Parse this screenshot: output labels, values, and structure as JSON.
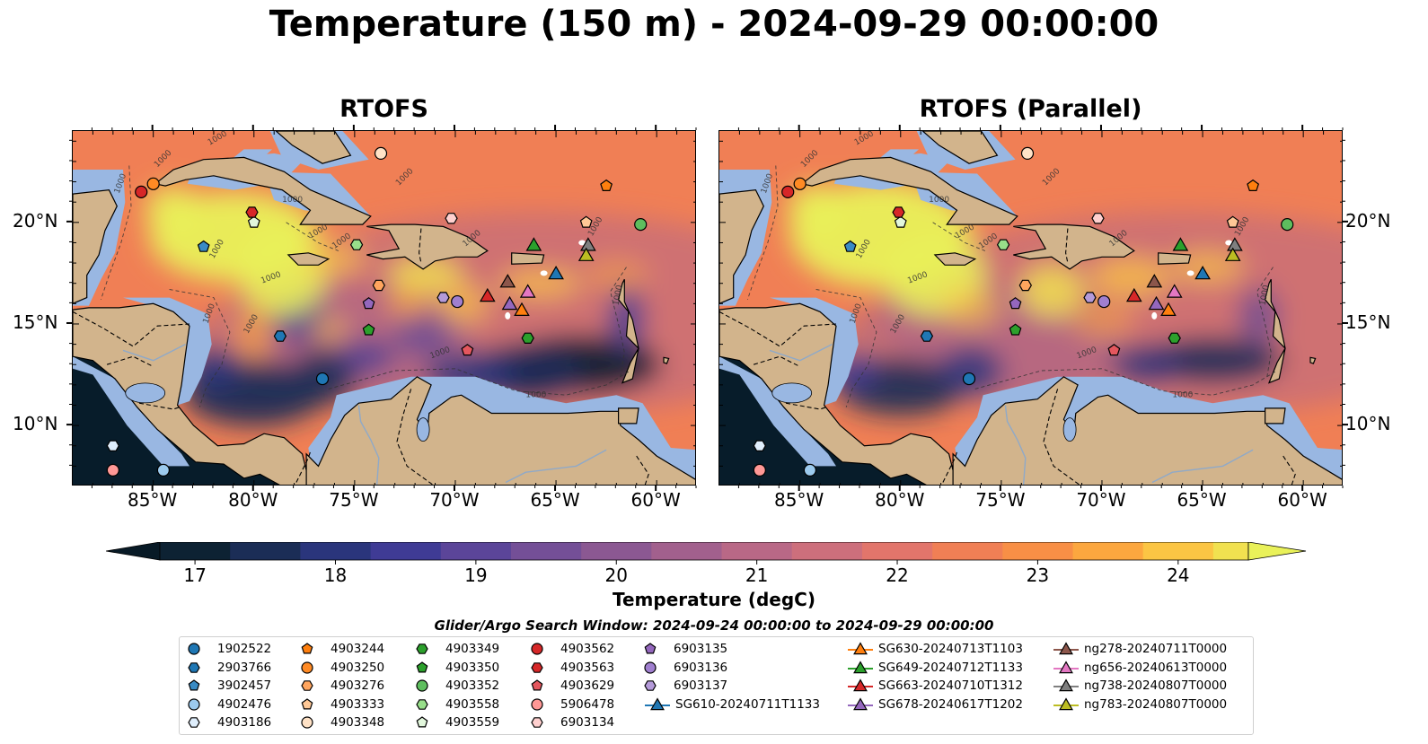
{
  "title": "Temperature (150 m) - 2024-09-29 00:00:00",
  "panels": [
    {
      "title": "RTOFS",
      "variant": "main"
    },
    {
      "title": "RTOFS (Parallel)",
      "variant": "parallel"
    }
  ],
  "map_extent": {
    "lon_min": -89.0,
    "lon_max": -58.0,
    "lat_min": 7.0,
    "lat_max": 24.5
  },
  "lat_ticks": [
    {
      "lat": 20,
      "label": "20°N"
    },
    {
      "lat": 15,
      "label": "15°N"
    },
    {
      "lat": 10,
      "label": "10°N"
    }
  ],
  "lon_ticks": [
    {
      "lon": -85,
      "label": "85°W"
    },
    {
      "lon": -80,
      "label": "80°W"
    },
    {
      "lon": -75,
      "label": "75°W"
    },
    {
      "lon": -70,
      "label": "70°W"
    },
    {
      "lon": -65,
      "label": "65°W"
    },
    {
      "lon": -60,
      "label": "60°W"
    }
  ],
  "contour_label": "1000",
  "colorbar": {
    "label": "Temperature (degC)",
    "min": 16.75,
    "max": 24.5,
    "step": 0.5,
    "ticks": [
      "17",
      "18",
      "19",
      "20",
      "21",
      "22",
      "23",
      "24"
    ],
    "tick_values": [
      17,
      18,
      19,
      20,
      21,
      22,
      23,
      24
    ],
    "colors": [
      "#0d2233",
      "#1b2d56",
      "#2a357c",
      "#3f3b95",
      "#5b4599",
      "#744f97",
      "#8b5892",
      "#a2608d",
      "#b96886",
      "#cd6f7c",
      "#e2756b",
      "#f07f55",
      "#f88f46",
      "#fca73f",
      "#fbc544",
      "#f1e150",
      "#e9f159"
    ],
    "extend_low": "#081a26",
    "extend_high": "#e9f159"
  },
  "colors": {
    "land": "#d2b48c",
    "shelf": "#99b7e2",
    "river": "#8fa9c8"
  },
  "search_window": "Glider/Argo Search Window: 2024-09-24 00:00:00 to 2024-09-29 00:00:00",
  "legend_columns": [
    [
      {
        "label": "1902522",
        "marker": "circle",
        "color": "#1f77b4"
      },
      {
        "label": "2903766",
        "marker": "hexagon",
        "color": "#1f77b4"
      },
      {
        "label": "3902457",
        "marker": "pentagon",
        "color": "#3a8bc4"
      },
      {
        "label": "4902476",
        "marker": "circle",
        "color": "#9ccaee"
      },
      {
        "label": "4903186",
        "marker": "hexagon",
        "color": "#dfeefc"
      }
    ],
    [
      {
        "label": "4903244",
        "marker": "pentagon",
        "color": "#ff7f0e"
      },
      {
        "label": "4903250",
        "marker": "circle",
        "color": "#ff8a24"
      },
      {
        "label": "4903276",
        "marker": "hexagon",
        "color": "#ffa55e"
      },
      {
        "label": "4903333",
        "marker": "pentagon",
        "color": "#ffc896"
      },
      {
        "label": "4903348",
        "marker": "circle",
        "color": "#ffe2c6"
      }
    ],
    [
      {
        "label": "4903349",
        "marker": "hexagon",
        "color": "#2ca02c"
      },
      {
        "label": "4903350",
        "marker": "pentagon",
        "color": "#2ca02c"
      },
      {
        "label": "4903352",
        "marker": "circle",
        "color": "#5ebe5e"
      },
      {
        "label": "4903558",
        "marker": "hexagon",
        "color": "#98df8a"
      },
      {
        "label": "4903559",
        "marker": "pentagon",
        "color": "#e2f7dc"
      }
    ],
    [
      {
        "label": "4903562",
        "marker": "circle",
        "color": "#d62728"
      },
      {
        "label": "4903563",
        "marker": "hexagon",
        "color": "#d62728"
      },
      {
        "label": "4903629",
        "marker": "pentagon",
        "color": "#e4575e"
      },
      {
        "label": "5906478",
        "marker": "circle",
        "color": "#ff9896"
      },
      {
        "label": "6903134",
        "marker": "hexagon",
        "color": "#ffd0cf"
      }
    ],
    [
      {
        "label": "6903135",
        "marker": "pentagon",
        "color": "#9467bd"
      },
      {
        "label": "6903136",
        "marker": "circle",
        "color": "#a07fcf"
      },
      {
        "label": "6903137",
        "marker": "hexagon",
        "color": "#b49ad9"
      },
      {
        "label": "SG610-20240711T1133",
        "marker": "triangle",
        "color": "#1f77b4"
      }
    ],
    [
      {
        "label": "SG630-20240713T1103",
        "marker": "triangle",
        "color": "#ff7f0e"
      },
      {
        "label": "SG649-20240712T1133",
        "marker": "triangle",
        "color": "#2ca02c"
      },
      {
        "label": "SG663-20240710T1312",
        "marker": "triangle",
        "color": "#d62728"
      },
      {
        "label": "SG678-20240617T1202",
        "marker": "triangle",
        "color": "#9467bd"
      }
    ],
    [
      {
        "label": "ng278-20240711T0000",
        "marker": "triangle",
        "color": "#8c564b"
      },
      {
        "label": "ng656-20240613T0000",
        "marker": "triangle",
        "color": "#e377c2"
      },
      {
        "label": "ng738-20240807T0000",
        "marker": "triangle",
        "color": "#7f7f7f"
      },
      {
        "label": "ng783-20240807T0000",
        "marker": "triangle",
        "color": "#bcbd22"
      }
    ]
  ],
  "platforms": [
    {
      "id": "1902522",
      "lon": -76.6,
      "lat": 12.3
    },
    {
      "id": "2903766",
      "lon": -78.7,
      "lat": 14.4
    },
    {
      "id": "3902457",
      "lon": -82.5,
      "lat": 18.8
    },
    {
      "id": "4902476",
      "lon": -84.5,
      "lat": 7.8
    },
    {
      "id": "4903186",
      "lon": -87.0,
      "lat": 9.0
    },
    {
      "id": "4903244",
      "lon": -62.5,
      "lat": 21.8
    },
    {
      "id": "4903250",
      "lon": -85.0,
      "lat": 21.9
    },
    {
      "id": "4903276",
      "lon": -73.8,
      "lat": 16.9
    },
    {
      "id": "4903333",
      "lon": -63.5,
      "lat": 20.0
    },
    {
      "id": "4903348",
      "lon": -73.7,
      "lat": 23.4
    },
    {
      "id": "4903349",
      "lon": -66.4,
      "lat": 14.3
    },
    {
      "id": "4903350",
      "lon": -74.3,
      "lat": 14.7
    },
    {
      "id": "4903352",
      "lon": -60.8,
      "lat": 19.9
    },
    {
      "id": "4903558",
      "lon": -74.9,
      "lat": 18.9
    },
    {
      "id": "4903559",
      "lon": -80.0,
      "lat": 20.0
    },
    {
      "id": "4903562",
      "lon": -85.6,
      "lat": 21.5
    },
    {
      "id": "4903563",
      "lon": -80.1,
      "lat": 20.5
    },
    {
      "id": "4903629",
      "lon": -69.4,
      "lat": 13.7
    },
    {
      "id": "5906478",
      "lon": -87.0,
      "lat": 7.8
    },
    {
      "id": "6903134",
      "lon": -70.2,
      "lat": 20.2
    },
    {
      "id": "6903135",
      "lon": -74.3,
      "lat": 16.0
    },
    {
      "id": "6903136",
      "lon": -69.9,
      "lat": 16.1
    },
    {
      "id": "6903137",
      "lon": -70.6,
      "lat": 16.3
    },
    {
      "id": "SG610-20240711T1133",
      "lon": -65.0,
      "lat": 17.5
    },
    {
      "id": "SG630-20240713T1103",
      "lon": -66.7,
      "lat": 15.7
    },
    {
      "id": "SG649-20240712T1133",
      "lon": -66.1,
      "lat": 18.9
    },
    {
      "id": "SG663-20240710T1312",
      "lon": -68.4,
      "lat": 16.4
    },
    {
      "id": "SG678-20240617T1202",
      "lon": -67.3,
      "lat": 16.0
    },
    {
      "id": "ng278-20240711T0000",
      "lon": -67.4,
      "lat": 17.1
    },
    {
      "id": "ng656-20240613T0000",
      "lon": -66.4,
      "lat": 16.6
    },
    {
      "id": "ng738-20240807T0000",
      "lon": -63.4,
      "lat": 18.9
    },
    {
      "id": "ng783-20240807T0000",
      "lon": -63.5,
      "lat": 18.4
    }
  ]
}
